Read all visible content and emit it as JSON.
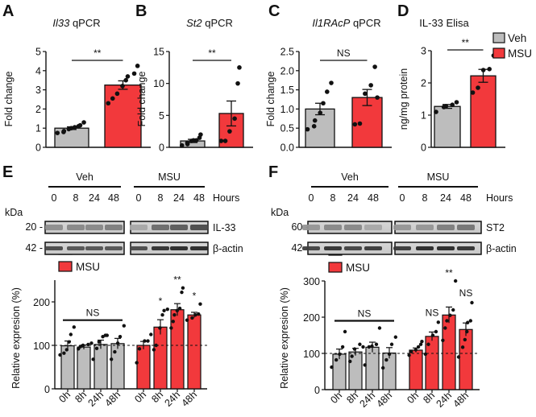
{
  "colors": {
    "veh": "#bdbdbd",
    "msu": "#f2393c",
    "axis": "#111111",
    "dot": "#111111"
  },
  "legend": {
    "veh": "Veh",
    "msu": "MSU"
  },
  "chart_data": [
    {
      "panel": "A",
      "type": "bar",
      "title_italic": "Il33",
      "title_rest": " qPCR",
      "ylabel": "Fold change",
      "ylim": [
        0,
        5
      ],
      "yticks": [
        0,
        1,
        2,
        3,
        4,
        5
      ],
      "ytick_labels": [
        "0",
        "1",
        "2",
        "3",
        "4",
        "5"
      ],
      "categories": [
        "Veh",
        "MSU"
      ],
      "values": [
        1.0,
        3.25
      ],
      "sem": [
        0.07,
        0.22
      ],
      "points": [
        [
          0.75,
          0.8,
          0.85,
          0.95,
          1.0,
          1.05,
          1.1,
          1.15,
          1.3
        ],
        [
          2.3,
          2.55,
          2.8,
          3.2,
          3.5,
          3.7,
          3.85,
          4.25
        ]
      ],
      "significance": "**",
      "sig_span": [
        0,
        1
      ]
    },
    {
      "panel": "B",
      "type": "bar",
      "title_italic": "St2",
      "title_rest": " qPCR",
      "ylabel": "Fold change",
      "ylim": [
        0,
        15
      ],
      "yticks": [
        0,
        5,
        10,
        15
      ],
      "ytick_labels": [
        "0",
        "5",
        "10",
        "15"
      ],
      "categories": [
        "Veh",
        "MSU"
      ],
      "values": [
        1.0,
        5.3
      ],
      "sem": [
        0.25,
        1.95
      ],
      "points": [
        [
          0.3,
          0.5,
          0.7,
          1.0,
          1.1,
          1.1,
          1.5,
          2.0
        ],
        [
          1.0,
          1.0,
          2.5,
          4.5,
          10.0,
          12.5
        ]
      ],
      "significance": "**",
      "sig_span": [
        0,
        1
      ]
    },
    {
      "panel": "C",
      "type": "bar",
      "title_italic": "Il1RAcP",
      "title_rest": " qPCR",
      "ylabel": "Fold change",
      "ylim": [
        0,
        2.5
      ],
      "yticks": [
        0,
        0.5,
        1.0,
        1.5,
        2.0,
        2.5
      ],
      "ytick_labels": [
        "0.0",
        "0.5",
        "1.0",
        "1.5",
        "2.0",
        "2.5"
      ],
      "categories": [
        "Veh",
        "MSU"
      ],
      "values": [
        1.0,
        1.3
      ],
      "sem": [
        0.15,
        0.21
      ],
      "points": [
        [
          0.47,
          0.55,
          0.7,
          0.9,
          1.15,
          1.45,
          1.68
        ],
        [
          0.6,
          0.62,
          1.4,
          1.62,
          2.1,
          1.3
        ]
      ],
      "significance": "NS",
      "sig_span": [
        0,
        1
      ]
    },
    {
      "panel": "D",
      "type": "bar",
      "title": "IL-33 Elisa",
      "ylabel": "ng/mg protein",
      "ylim": [
        0,
        3
      ],
      "yticks": [
        0,
        1,
        2,
        3
      ],
      "ytick_labels": [
        "0",
        "1",
        "2",
        "3"
      ],
      "categories": [
        "Veh",
        "MSU"
      ],
      "values": [
        1.27,
        2.22
      ],
      "sem": [
        0.06,
        0.2
      ],
      "points": [
        [
          1.1,
          1.25,
          1.28,
          1.32,
          1.4
        ],
        [
          1.7,
          1.85,
          2.4,
          2.43,
          2.85
        ]
      ],
      "significance": "**",
      "sig_span": [
        0,
        1
      ]
    },
    {
      "panel": "E",
      "type": "bar",
      "ylabel": "Relative expresion (%)",
      "ylim": [
        0,
        250
      ],
      "yticks": [
        0,
        100,
        200
      ],
      "ytick_labels": [
        "0",
        "100",
        "200"
      ],
      "categories": [
        "0h",
        "8h",
        "24h",
        "48h",
        "0h",
        "8h",
        "24h",
        "48h"
      ],
      "groups": [
        "Veh",
        "Veh",
        "Veh",
        "Veh",
        "MSU",
        "MSU",
        "MSU",
        "MSU"
      ],
      "values": [
        99,
        96,
        102,
        104,
        100,
        142,
        182,
        170
      ],
      "sem": [
        11,
        5,
        10,
        12,
        9,
        17,
        14,
        6
      ],
      "points": [
        [
          78,
          82,
          90,
          108,
          125,
          142
        ],
        [
          92,
          97,
          100,
          102,
          105
        ],
        [
          68,
          93,
          108,
          120,
          123,
          123
        ],
        [
          68,
          85,
          105,
          120,
          145
        ],
        [
          60,
          92,
          110,
          110,
          125
        ],
        [
          90,
          100,
          140,
          170,
          180,
          183
        ],
        [
          140,
          155,
          170,
          180,
          185,
          222,
          232
        ],
        [
          158,
          163,
          170,
          172,
          195
        ]
      ],
      "bar_significance": [
        "",
        "",
        "",
        "",
        "",
        "*",
        "**",
        "*"
      ],
      "group_bracket": {
        "label": "NS",
        "span": [
          0,
          3
        ],
        "y": 158
      },
      "reference_line": 100
    },
    {
      "panel": "F",
      "type": "bar",
      "ylabel": "Relative expresion (%)",
      "ylim": [
        0,
        300
      ],
      "yticks": [
        0,
        100,
        200,
        300
      ],
      "ytick_labels": [
        "0",
        "100",
        "200",
        "300"
      ],
      "categories": [
        "0h",
        "8h",
        "24h",
        "48h",
        "0h",
        "8h",
        "24h",
        "48h"
      ],
      "groups": [
        "Veh",
        "Veh",
        "Veh",
        "Veh",
        "MSU",
        "MSU",
        "MSU",
        "MSU"
      ],
      "values": [
        98,
        104,
        117,
        101,
        109,
        147,
        206,
        166
      ],
      "sem": [
        14,
        10,
        14,
        15,
        6,
        12,
        22,
        18
      ],
      "points": [
        [
          62,
          82,
          98,
          118,
          160
        ],
        [
          78,
          92,
          112,
          125,
          118
        ],
        [
          68,
          118,
          120,
          125,
          170
        ],
        [
          60,
          82,
          98,
          125,
          145
        ],
        [
          95,
          105,
          110,
          118,
          125,
          133
        ],
        [
          98,
          125,
          150,
          160,
          186
        ],
        [
          136,
          170,
          190,
          205,
          220,
          300
        ],
        [
          90,
          117,
          138,
          160,
          185,
          190,
          240
        ]
      ],
      "bar_significance": [
        "",
        "",
        "",
        "",
        "",
        "NS",
        "**",
        "NS"
      ],
      "group_bracket": {
        "label": "NS",
        "span": [
          0,
          3
        ],
        "y": 190
      },
      "reference_line": 100
    }
  ],
  "blots": {
    "E": {
      "letter": "E",
      "kda_label": "kDa",
      "hours_label": "Hours",
      "groups": [
        "Veh",
        "MSU"
      ],
      "lanes": [
        "0",
        "8",
        "24",
        "48"
      ],
      "rows": [
        {
          "marker": "20 -",
          "protein": "IL-33",
          "intensity": [
            0.35,
            0.38,
            0.38,
            0.45,
            0.2,
            0.55,
            0.65,
            0.75
          ]
        },
        {
          "marker": "42 -",
          "protein": "β-actin",
          "intensity": [
            0.75,
            0.7,
            0.7,
            0.7,
            0.75,
            0.9,
            0.95,
            0.95
          ]
        }
      ]
    },
    "F": {
      "letter": "F",
      "kda_label": "kDa",
      "hours_label": "Hours",
      "groups": [
        "Veh",
        "MSU"
      ],
      "lanes": [
        "0",
        "8",
        "24",
        "48"
      ],
      "rows": [
        {
          "marker": "60 -",
          "protein": "ST2",
          "intensity": [
            0.3,
            0.38,
            0.38,
            0.2,
            0.3,
            0.3,
            0.45,
            0.5
          ]
        },
        {
          "marker": "42 -",
          "protein": "β-actin",
          "intensity": [
            0.8,
            0.9,
            0.8,
            0.85,
            0.85,
            0.95,
            0.95,
            0.9
          ]
        }
      ]
    }
  }
}
